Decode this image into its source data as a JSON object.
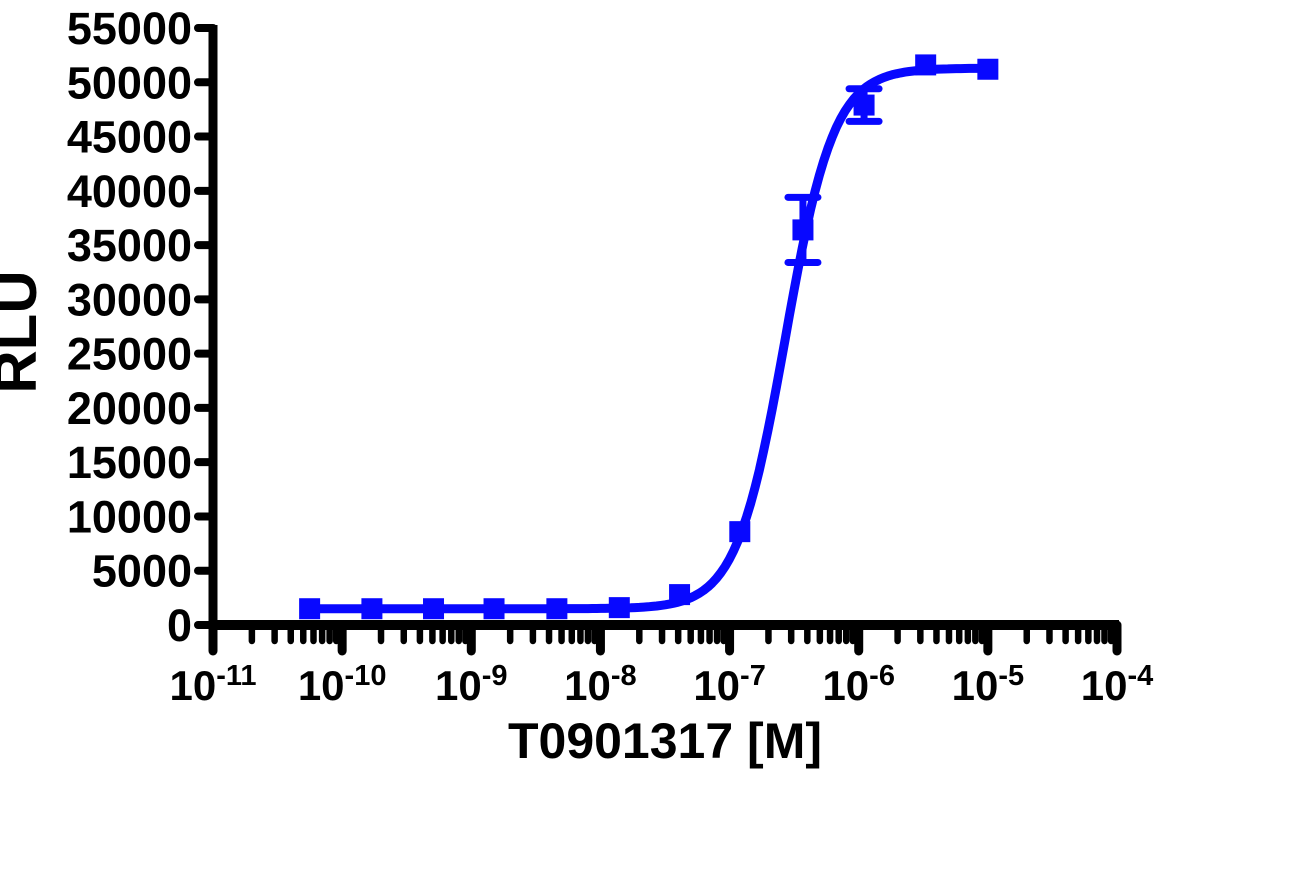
{
  "chart_data": {
    "type": "scatter",
    "title": "",
    "xlabel": "T0901317 [M]",
    "ylabel": "RLU",
    "x_scale": "log10",
    "xlim_exponents": [
      -11,
      -4
    ],
    "ylim": [
      0,
      55000
    ],
    "y_ticks": [
      0,
      5000,
      10000,
      15000,
      20000,
      25000,
      30000,
      35000,
      40000,
      45000,
      50000,
      55000
    ],
    "x_tick_exponents": [
      -11,
      -10,
      -9,
      -8,
      -7,
      -6,
      -5,
      -4
    ],
    "x_tick_base": "10",
    "grid": false,
    "legend": null,
    "colors": {
      "series": "#0808ff",
      "axis": "#000000",
      "background": "#ffffff"
    },
    "series": [
      {
        "name": "T0901317",
        "marker": "square",
        "marker_size_px": 21,
        "points": [
          {
            "x": 5.6e-11,
            "y": 1500,
            "err": 0
          },
          {
            "x": 1.7e-10,
            "y": 1500,
            "err": 0
          },
          {
            "x": 5.1e-10,
            "y": 1500,
            "err": 0
          },
          {
            "x": 1.5e-09,
            "y": 1500,
            "err": 0
          },
          {
            "x": 4.6e-09,
            "y": 1500,
            "err": 0
          },
          {
            "x": 1.4e-08,
            "y": 1600,
            "err": 0
          },
          {
            "x": 4.1e-08,
            "y": 2800,
            "err": 0
          },
          {
            "x": 1.2e-07,
            "y": 8600,
            "err": 0
          },
          {
            "x": 3.7e-07,
            "y": 36400,
            "err": 3000
          },
          {
            "x": 1.1e-06,
            "y": 47900,
            "err": 1500
          },
          {
            "x": 3.3e-06,
            "y": 51600,
            "err": 0
          },
          {
            "x": 1e-05,
            "y": 51200,
            "err": 0
          }
        ],
        "fit_curve": {
          "model": "4PL-Hill",
          "bottom": 1500,
          "top": 51300,
          "ec50": 2.7e-07,
          "hill": 2.3,
          "x_start": 5.2e-11,
          "x_end": 1.05e-05
        }
      }
    ]
  }
}
